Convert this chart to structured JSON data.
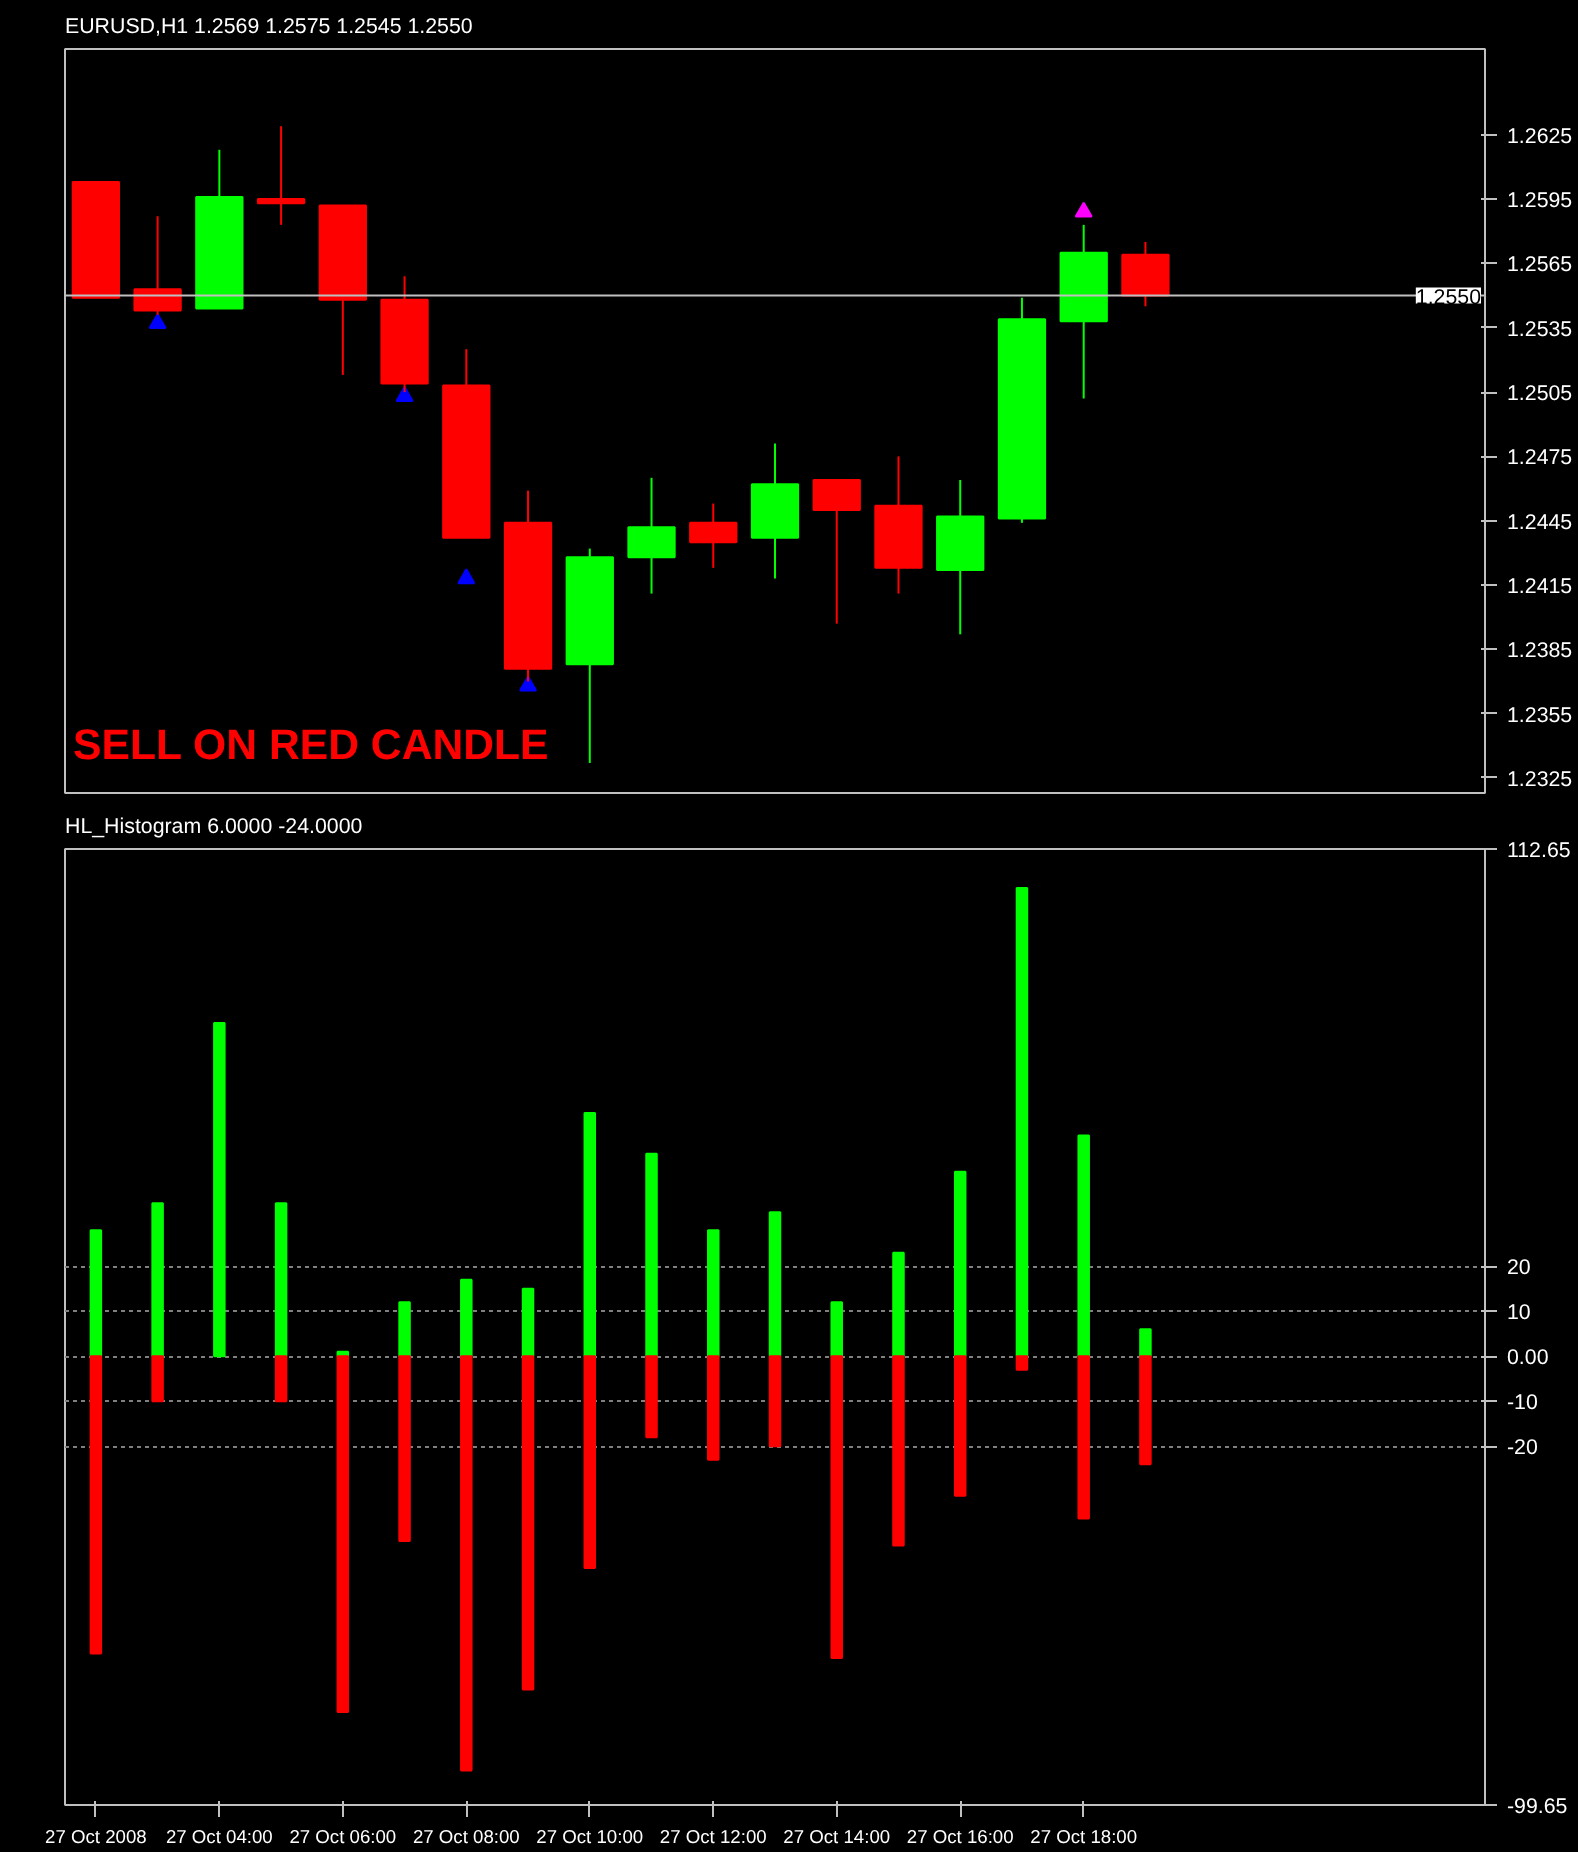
{
  "chart_data": [
    {
      "type": "candlestick",
      "title": "EURUSD,H1  1.2569 1.2575 1.2545 1.2550",
      "categories": [
        null,
        null,
        null,
        null,
        null,
        null,
        null,
        null,
        null,
        null,
        null,
        null,
        null,
        null,
        null,
        null,
        null,
        null,
        null,
        null,
        null,
        null,
        null
      ],
      "ohlc": [
        [
          1.2603,
          1.2603,
          1.2549,
          1.2549
        ],
        [
          1.2553,
          1.2587,
          1.2541,
          1.2543
        ],
        [
          1.2544,
          1.2618,
          1.2544,
          1.2596
        ],
        [
          1.2595,
          1.2629,
          1.2583,
          1.2593
        ],
        [
          1.2592,
          1.2592,
          1.2513,
          1.2548
        ],
        [
          1.2548,
          1.2559,
          1.2505,
          1.2509
        ],
        [
          1.2508,
          1.2525,
          1.2437,
          1.2437
        ],
        [
          1.2444,
          1.2459,
          1.237,
          1.2376
        ],
        [
          1.2378,
          1.2432,
          1.2332,
          1.2428
        ],
        [
          1.2428,
          1.2465,
          1.2411,
          1.2442
        ],
        [
          1.2444,
          1.2453,
          1.2423,
          1.2435
        ],
        [
          1.2437,
          1.2481,
          1.2418,
          1.2462
        ],
        [
          1.2464,
          1.2464,
          1.2397,
          1.245
        ],
        [
          1.2452,
          1.2475,
          1.2411,
          1.2423
        ],
        [
          1.2422,
          1.2464,
          1.2392,
          1.2447
        ],
        [
          1.2446,
          1.2549,
          1.2444,
          1.2539
        ],
        [
          1.2538,
          1.2583,
          1.2502,
          1.257
        ],
        [
          1.2569,
          1.2575,
          1.2545,
          1.255
        ],
        null,
        null,
        null,
        null,
        null
      ],
      "colors": [
        "#ff0000",
        "#ff0000",
        "#00ff00",
        "#ff0000",
        "#ff0000",
        "#ff0000",
        "#ff0000",
        "#ff0000",
        "#00ff00",
        "#00ff00",
        "#ff0000",
        "#00ff00",
        "#ff0000",
        "#ff0000",
        "#00ff00",
        "#00ff00",
        "#00ff00",
        "#ff0000",
        null,
        null,
        null,
        null,
        null
      ],
      "series": [
        {
          "type": "scatter",
          "color": "#0000ff",
          "values": [
            null,
            1.2537,
            null,
            null,
            null,
            1.2503,
            1.2418,
            1.2368,
            null,
            null,
            null,
            null,
            null,
            null,
            null,
            null,
            null,
            null,
            null,
            null,
            null,
            null,
            null
          ]
        },
        {
          "type": "scatter",
          "color": "#ff00ff",
          "values": [
            null,
            null,
            null,
            null,
            null,
            null,
            null,
            null,
            null,
            null,
            null,
            null,
            null,
            null,
            null,
            null,
            1.2589,
            null,
            null,
            null,
            null,
            null,
            null
          ]
        }
      ],
      "marker": "triangle",
      "ylim": [
        1.2318,
        1.2665
      ],
      "yticks": [
        1.2625,
        1.2595,
        1.2565,
        1.2535,
        1.2505,
        1.2475,
        1.2445,
        1.2415,
        1.2385,
        1.2355,
        1.2325
      ],
      "ref_lines": [
        {
          "axis": "y",
          "value": 1.255,
          "label": "1.2550",
          "color": "#c0c0c0"
        }
      ],
      "annotations": [
        "SELL ON RED CANDLE"
      ],
      "tick_labels": "y"
    },
    {
      "type": "bar",
      "title": "HL_Histogram 6.0000 -24.0000",
      "stacked": true,
      "categories": [
        "27 Oct 2008",
        null,
        "27 Oct 04:00",
        null,
        "27 Oct 06:00",
        null,
        "27 Oct 08:00",
        null,
        "27 Oct 10:00",
        null,
        "27 Oct 12:00",
        null,
        "27 Oct 14:00",
        null,
        "27 Oct 16:00",
        null,
        "27 Oct 18:00",
        null,
        null,
        null,
        null,
        null,
        null
      ],
      "series": [
        {
          "color": "#00ff00",
          "values": [
            28,
            34,
            74,
            34,
            1,
            12,
            17,
            15,
            54,
            45,
            28,
            32,
            12,
            23,
            41,
            104,
            49,
            6,
            null,
            null,
            null,
            null,
            null
          ]
        },
        {
          "color": "#ff0000",
          "values": [
            -66,
            -10,
            null,
            -10,
            -79,
            -41,
            -92,
            -74,
            -47,
            -18,
            -23,
            -20,
            -67,
            -42,
            -31,
            -3,
            -36,
            -24,
            null,
            null,
            null,
            null,
            null
          ]
        }
      ],
      "ylim": [
        -99.65,
        112.65
      ],
      "yticks": [
        112.65,
        20,
        10,
        {
          "value": 0,
          "label": "0.00"
        },
        -10,
        -20,
        -99.65
      ],
      "grid": "y"
    }
  ]
}
